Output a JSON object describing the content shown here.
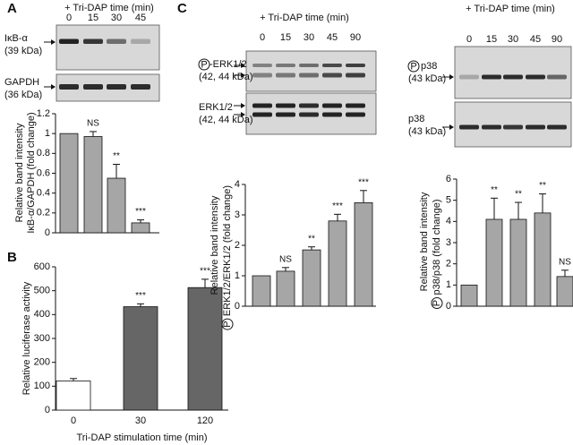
{
  "panels": [
    "A",
    "B",
    "C"
  ],
  "phospho_symbol": "P",
  "blots": [
    {
      "name": "IκB-α",
      "size": "(39 kDa)",
      "phospho": false
    },
    {
      "name": "GAPDH",
      "size": "(36 kDa)",
      "phospho": false
    },
    {
      "name": "-ERK1/2",
      "size": "(42, 44 kDa)",
      "phospho": true
    },
    {
      "name": "ERK1/2",
      "size": "(42, 44 kDa)",
      "phospho": false
    },
    {
      "name": "p38",
      "size": "(43 kDa)",
      "phospho": true
    },
    {
      "name": "p38",
      "size": "(43 kDa)",
      "phospho": false
    }
  ],
  "chart_data": [
    {
      "type": "bar",
      "header": "+ Tri-DAP time (min)",
      "categories": [
        "0",
        "15",
        "30",
        "45"
      ],
      "values": [
        1,
        0.97,
        0.55,
        0.1
      ],
      "errors": [
        0,
        0.05,
        0.14,
        0.03
      ],
      "significance": [
        null,
        "NS",
        "**",
        "***"
      ],
      "colors": [
        "#a6a6a6",
        "#a6a6a6",
        "#a6a6a6",
        "#a6a6a6"
      ],
      "ylabel": [
        "Relative band intensity",
        "IκB-α/GAPDH (fold change)"
      ],
      "ylim": [
        0,
        1.2
      ],
      "yticks": [
        0,
        0.2,
        0.4,
        0.6,
        0.8,
        1,
        1.2
      ]
    },
    {
      "type": "bar",
      "categories": [
        "0",
        "30",
        "120"
      ],
      "values": [
        122,
        433,
        513
      ],
      "errors": [
        10,
        12,
        35
      ],
      "significance": [
        null,
        "***",
        "***"
      ],
      "colors": [
        "#ffffff",
        "#666666",
        "#666666"
      ],
      "ylabel": [
        "Relative luciferase activity"
      ],
      "xlabel": "Tri-DAP stimulation time (min)",
      "ylim": [
        0,
        600
      ],
      "yticks": [
        0,
        100,
        200,
        300,
        400,
        500,
        600
      ]
    },
    {
      "type": "bar",
      "header": "+ Tri-DAP time (min)",
      "categories": [
        "0",
        "15",
        "30",
        "45",
        "90"
      ],
      "values": [
        1,
        1.15,
        1.85,
        2.8,
        3.4
      ],
      "errors": [
        0,
        0.12,
        0.1,
        0.22,
        0.4
      ],
      "significance": [
        null,
        "NS",
        "**",
        "***",
        "***"
      ],
      "colors": [
        "#a6a6a6",
        "#a6a6a6",
        "#a6a6a6",
        "#a6a6a6",
        "#a6a6a6"
      ],
      "ylabel": [
        "Relative band intensity",
        "ERK1/2/ERK1/2 (fold change)"
      ],
      "ylabel_phospho": true,
      "ylim": [
        0,
        4
      ],
      "yticks": [
        0,
        1,
        2,
        3,
        4
      ]
    },
    {
      "type": "bar",
      "header": "+ Tri-DAP time (min)",
      "categories": [
        "0",
        "15",
        "30",
        "45",
        "90"
      ],
      "values": [
        1,
        4.1,
        4.1,
        4.4,
        1.4
      ],
      "errors": [
        0,
        1,
        0.8,
        0.9,
        0.3
      ],
      "significance": [
        null,
        "**",
        "**",
        "**",
        "NS"
      ],
      "colors": [
        "#a6a6a6",
        "#a6a6a6",
        "#a6a6a6",
        "#a6a6a6",
        "#a6a6a6"
      ],
      "ylabel": [
        "Relative band intensity",
        "p38/p38 (fold change)"
      ],
      "ylabel_phospho": true,
      "ylim": [
        0,
        6
      ],
      "yticks": [
        0,
        1,
        2,
        3,
        4,
        5,
        6
      ]
    }
  ]
}
